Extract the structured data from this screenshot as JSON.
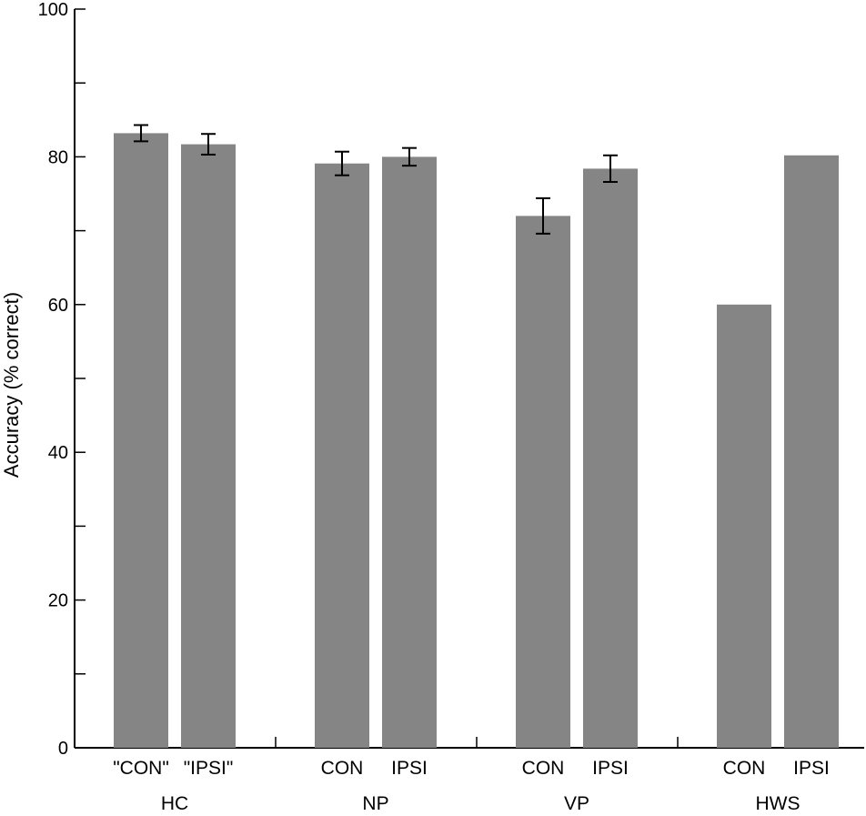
{
  "chart_data": {
    "type": "bar",
    "ylabel": "Accuracy (% correct)",
    "xlabel": "",
    "ylim": [
      0,
      100
    ],
    "yticks": [
      0,
      20,
      40,
      60,
      80,
      100
    ],
    "grid": false,
    "bar_color": "#858585",
    "groups": [
      {
        "name": "HC",
        "bars": [
          {
            "label": "\"CON\"",
            "value": 83.2,
            "err": 1.1
          },
          {
            "label": "\"IPSI\"",
            "value": 81.7,
            "err": 1.4
          }
        ]
      },
      {
        "name": "NP",
        "bars": [
          {
            "label": "CON",
            "value": 79.1,
            "err": 1.6
          },
          {
            "label": "IPSI",
            "value": 80.0,
            "err": 1.2
          }
        ]
      },
      {
        "name": "VP",
        "bars": [
          {
            "label": "CON",
            "value": 72.0,
            "err": 2.4
          },
          {
            "label": "IPSI",
            "value": 78.4,
            "err": 1.8
          }
        ]
      },
      {
        "name": "HWS",
        "bars": [
          {
            "label": "CON",
            "value": 60.0,
            "err": null
          },
          {
            "label": "IPSI",
            "value": 80.2,
            "err": null
          }
        ]
      }
    ]
  }
}
